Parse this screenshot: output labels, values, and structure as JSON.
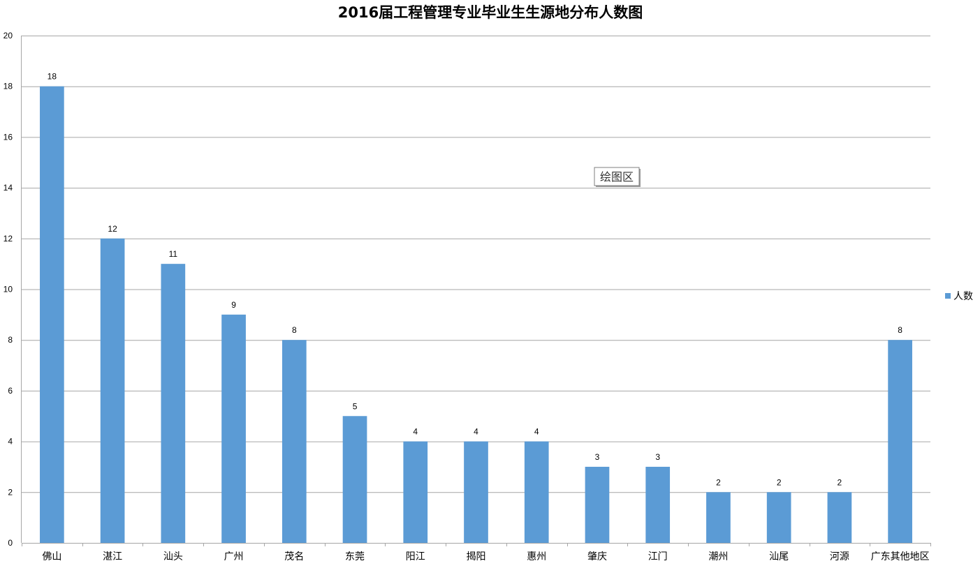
{
  "chart_data": {
    "type": "bar",
    "title": "2016届工程管理专业毕业生生源地分布人数图",
    "categories": [
      "佛山",
      "湛江",
      "汕头",
      "广州",
      "茂名",
      "东莞",
      "阳江",
      "揭阳",
      "惠州",
      "肇庆",
      "江门",
      "潮州",
      "汕尾",
      "河源",
      "广东其他地区"
    ],
    "series": [
      {
        "name": "人数",
        "values": [
          18,
          12,
          11,
          9,
          8,
          5,
          4,
          4,
          4,
          3,
          3,
          2,
          2,
          2,
          8
        ],
        "color": "#5b9bd5"
      }
    ],
    "ylim": [
      0,
      20
    ],
    "yticks": [
      0,
      2,
      4,
      6,
      8,
      10,
      12,
      14,
      16,
      18,
      20
    ],
    "grid": true,
    "legend_position": "right",
    "data_labels": true
  },
  "tooltip": {
    "text": "绘图区"
  },
  "colors": {
    "gridline": "#a6a6a6",
    "axis": "#a6a6a6",
    "bar": "#5b9bd5"
  }
}
